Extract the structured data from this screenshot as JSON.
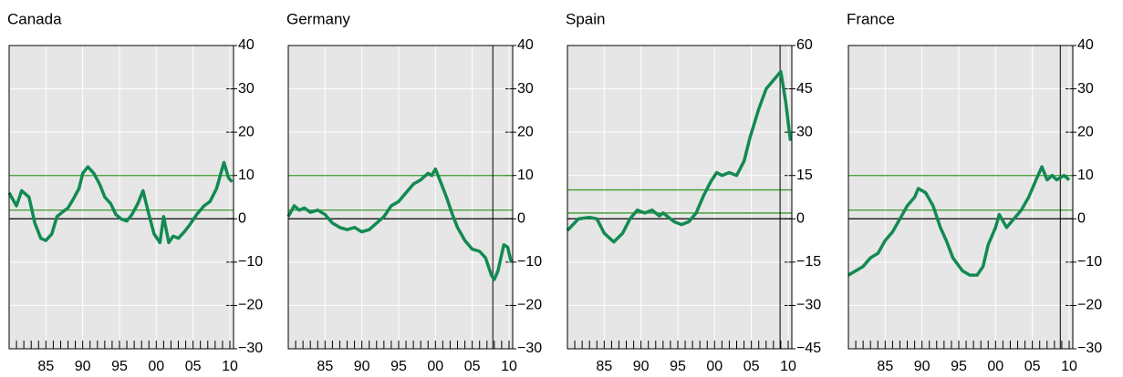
{
  "chart_data": [
    {
      "type": "line",
      "title": "Canada",
      "x": [
        1980,
        1980.5,
        1981,
        1981.7,
        1982.7,
        1983.5,
        1984.3,
        1985,
        1985.8,
        1986.5,
        1987.2,
        1988,
        1988.7,
        1989.5,
        1990,
        1990.7,
        1991.5,
        1992.3,
        1993,
        1993.8,
        1994.5,
        1995.2,
        1996,
        1996.7,
        1997.5,
        1998.2,
        1999,
        1999.7,
        2000.5,
        2001,
        2001.7,
        2002.3,
        2003,
        2003.8,
        2004.5,
        2005.5,
        2006.5,
        2007.3,
        2008.2,
        2009.2,
        2009.8,
        2010.3
      ],
      "series": [
        {
          "color": "#128a52",
          "values": [
            6,
            4.5,
            3,
            6.5,
            5,
            -1,
            -4.5,
            -5,
            -3.5,
            0.5,
            1.5,
            2.5,
            4.5,
            7,
            10.5,
            12,
            10.5,
            8,
            5,
            3.5,
            1,
            0,
            -0.5,
            1,
            3.5,
            6.5,
            1,
            -3.5,
            -5.5,
            0.5,
            -5.5,
            -4,
            -4.5,
            -3,
            -1.5,
            1,
            3,
            4,
            7,
            13,
            9.5,
            8.5
          ]
        }
      ],
      "xlim": [
        1980,
        2010.5
      ],
      "ylim": [
        -30,
        40
      ],
      "xticks": [
        {
          "value": 1985,
          "label": "85"
        },
        {
          "value": 1990,
          "label": "90"
        },
        {
          "value": 1995,
          "label": "95"
        },
        {
          "value": 2000,
          "label": "00"
        },
        {
          "value": 2005,
          "label": "05"
        },
        {
          "value": 2010,
          "label": "10"
        }
      ],
      "yticks": [
        {
          "value": -30,
          "label": "−30"
        },
        {
          "value": -20,
          "label": "−20"
        },
        {
          "value": -10,
          "label": "−10"
        },
        0,
        10,
        20,
        30,
        40
      ],
      "grid": true,
      "reference_lines": [
        {
          "value": 10,
          "color": "#3a9a2a"
        },
        {
          "value": 2,
          "color": "#3a9a2a"
        },
        {
          "value": 0,
          "color": "#000000"
        }
      ]
    },
    {
      "type": "line",
      "title": "Germany",
      "x": [
        1980,
        1980.8,
        1981.5,
        1982.2,
        1983,
        1984,
        1985,
        1986,
        1987,
        1988,
        1989,
        1990,
        1991,
        1992,
        1993,
        1994,
        1995,
        1996,
        1997,
        1998,
        1999,
        1999.5,
        2000,
        2000.7,
        2001.5,
        2002.3,
        2003,
        2004,
        2005,
        2006,
        2006.8,
        2007.6,
        2008,
        2008.5,
        2009.3,
        2009.8,
        2010.3
      ],
      "series": [
        {
          "color": "#128a52",
          "values": [
            0.5,
            3,
            2,
            2.5,
            1.5,
            2,
            1,
            -1,
            -2,
            -2.5,
            -2,
            -3,
            -2.5,
            -1,
            0.5,
            3,
            4,
            6,
            8,
            9,
            10.5,
            10,
            11.5,
            8.5,
            5,
            1,
            -2,
            -5,
            -7,
            -7.5,
            -9,
            -13,
            -14,
            -12,
            -6,
            -6.5,
            -10
          ]
        }
      ],
      "xlim": [
        1980,
        2010.5
      ],
      "ylim": [
        -30,
        40
      ],
      "xticks": [
        {
          "value": 1985,
          "label": "85"
        },
        {
          "value": 1990,
          "label": "90"
        },
        {
          "value": 1995,
          "label": "95"
        },
        {
          "value": 2000,
          "label": "00"
        },
        {
          "value": 2005,
          "label": "05"
        },
        {
          "value": 2010,
          "label": "10"
        }
      ],
      "yticks": [
        {
          "value": -30,
          "label": "−30"
        },
        {
          "value": -20,
          "label": "−20"
        },
        {
          "value": -10,
          "label": "−10"
        },
        0,
        10,
        20,
        30,
        40
      ],
      "grid": true,
      "reference_lines": [
        {
          "value": 10,
          "color": "#3a9a2a"
        },
        {
          "value": 2,
          "color": "#3a9a2a"
        },
        {
          "value": 0,
          "color": "#000000"
        }
      ],
      "vertical_line": 2007.8
    },
    {
      "type": "line",
      "title": "Spain",
      "x": [
        1980,
        1981.5,
        1983,
        1984,
        1985,
        1986.3,
        1987.5,
        1988.5,
        1989.5,
        1990.5,
        1991.5,
        1992.5,
        1993,
        1994.5,
        1995.5,
        1996.5,
        1997.5,
        1998.5,
        1999.5,
        2000.3,
        2001,
        2002,
        2003,
        2004,
        2004.8,
        2006,
        2007,
        2008,
        2009,
        2009.7,
        2010.3
      ],
      "series": [
        {
          "color": "#128a52",
          "values": [
            -4,
            0,
            0.5,
            0,
            -5,
            -8,
            -5,
            0,
            3,
            2,
            3,
            1,
            2,
            -1,
            -2,
            -1,
            2,
            8,
            13,
            16,
            15,
            16,
            15,
            20,
            28,
            38,
            45,
            48,
            51,
            40,
            27
          ]
        }
      ],
      "xlim": [
        1980,
        2010.5
      ],
      "ylim": [
        -45,
        60
      ],
      "xticks": [
        {
          "value": 1985,
          "label": "85"
        },
        {
          "value": 1990,
          "label": "90"
        },
        {
          "value": 1995,
          "label": "95"
        },
        {
          "value": 2000,
          "label": "00"
        },
        {
          "value": 2005,
          "label": "05"
        },
        {
          "value": 2010,
          "label": "10"
        }
      ],
      "yticks": [
        {
          "value": -45,
          "label": "−45"
        },
        {
          "value": -30,
          "label": "−30"
        },
        {
          "value": -15,
          "label": "−15"
        },
        0,
        15,
        30,
        45,
        60
      ],
      "grid": true,
      "reference_lines": [
        {
          "value": 10,
          "color": "#3a9a2a"
        },
        {
          "value": 2,
          "color": "#3a9a2a"
        },
        {
          "value": 0,
          "color": "#000000"
        }
      ],
      "vertical_line": 2008.9
    },
    {
      "type": "line",
      "title": "France",
      "x": [
        1980,
        1981,
        1982,
        1983,
        1984,
        1985,
        1986,
        1987,
        1988,
        1989,
        1989.5,
        1990.5,
        1991.5,
        1992.5,
        1993.3,
        1994.2,
        1995.5,
        1996.5,
        1997.5,
        1998.3,
        1999,
        2000,
        2000.5,
        2001.5,
        2002.5,
        2003.5,
        2004.5,
        2005.5,
        2006.3,
        2007,
        2007.7,
        2008.3,
        2009.3,
        2010
      ],
      "series": [
        {
          "color": "#128a52",
          "values": [
            -13,
            -12,
            -11,
            -9,
            -8,
            -5,
            -3,
            0,
            3,
            5,
            7,
            6,
            3,
            -2,
            -5,
            -9,
            -12,
            -13,
            -13,
            -11,
            -6,
            -2,
            1,
            -2,
            0,
            2,
            5,
            9,
            12,
            9,
            10,
            9,
            10,
            9
          ]
        }
      ],
      "xlim": [
        1980,
        2010.5
      ],
      "ylim": [
        -30,
        40
      ],
      "xticks": [
        {
          "value": 1985,
          "label": "85"
        },
        {
          "value": 1990,
          "label": "90"
        },
        {
          "value": 1995,
          "label": "95"
        },
        {
          "value": 2000,
          "label": "00"
        },
        {
          "value": 2005,
          "label": "05"
        },
        {
          "value": 2010,
          "label": "10"
        }
      ],
      "yticks": [
        {
          "value": -30,
          "label": "−30"
        },
        {
          "value": -20,
          "label": "−20"
        },
        {
          "value": -10,
          "label": "−10"
        },
        0,
        10,
        20,
        30,
        40
      ],
      "grid": true,
      "reference_lines": [
        {
          "value": 10,
          "color": "#3a9a2a"
        },
        {
          "value": 2,
          "color": "#3a9a2a"
        },
        {
          "value": 0,
          "color": "#000000"
        }
      ],
      "vertical_line": 2008.8
    }
  ]
}
